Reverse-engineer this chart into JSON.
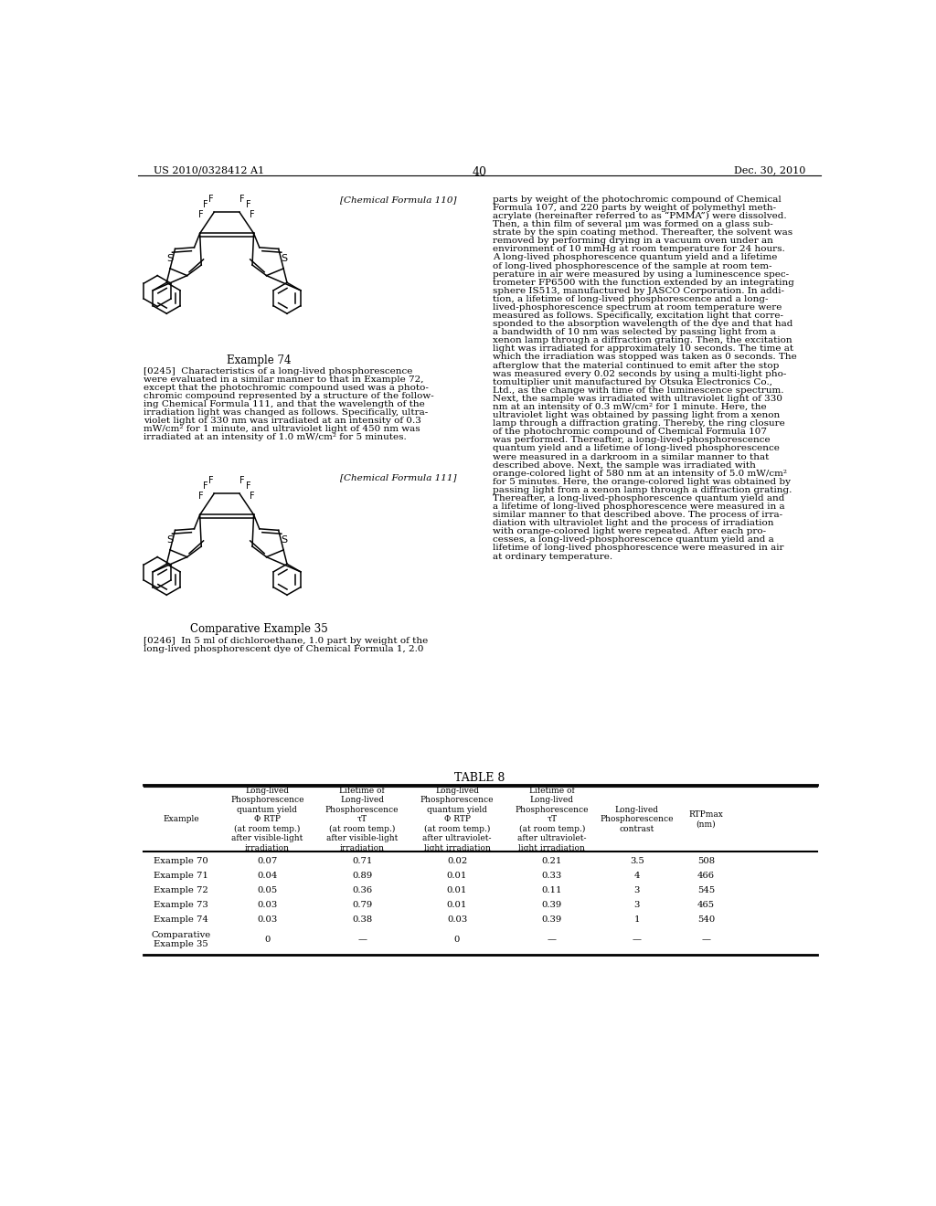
{
  "page_header_left": "US 2010/0328412 A1",
  "page_header_right": "Dec. 30, 2010",
  "page_number": "40",
  "chem_formula_110_label": "[Chemical Formula 110]",
  "chem_formula_111_label": "[Chemical Formula 111]",
  "example74_title": "Example 74",
  "comp_example35_title": "Comparative Example 35",
  "para_0245_lines": [
    "[0245]  Characteristics of a long-lived phosphorescence",
    "were evaluated in a similar manner to that in Example 72,",
    "except that the photochromic compound used was a photo-",
    "chromic compound represented by a structure of the follow-",
    "ing Chemical Formula 111, and that the wavelength of the",
    "irradiation light was changed as follows. Specifically, ultra-",
    "violet light of 330 nm was irradiated at an intensity of 0.3",
    "mW/cm² for 1 minute, and ultraviolet light of 450 nm was",
    "irradiated at an intensity of 1.0 mW/cm² for 5 minutes."
  ],
  "para_0246_lines": [
    "[0246]  In 5 ml of dichloroethane, 1.0 part by weight of the",
    "long-lived phosphorescent dye of Chemical Formula 1, 2.0"
  ],
  "right_col_lines": [
    "parts by weight of the photochromic compound of Chemical",
    "Formula 107, and 220 parts by weight of polymethyl meth-",
    "acrylate (hereinafter referred to as “PMMA”) were dissolved.",
    "Then, a thin film of several μm was formed on a glass sub-",
    "strate by the spin coating method. Thereafter, the solvent was",
    "removed by performing drying in a vacuum oven under an",
    "environment of 10 mmHg at room temperature for 24 hours.",
    "A long-lived phosphorescence quantum yield and a lifetime",
    "of long-lived phosphorescence of the sample at room tem-",
    "perature in air were measured by using a luminescence spec-",
    "trometer FP6500 with the function extended by an integrating",
    "sphere IS513, manufactured by JASCO Corporation. In addi-",
    "tion, a lifetime of long-lived phosphorescence and a long-",
    "lived-phosphorescence spectrum at room temperature were",
    "measured as follows. Specifically, excitation light that corre-",
    "sponded to the absorption wavelength of the dye and that had",
    "a bandwidth of 10 nm was selected by passing light from a",
    "xenon lamp through a diffraction grating. Then, the excitation",
    "light was irradiated for approximately 10 seconds. The time at",
    "which the irradiation was stopped was taken as 0 seconds. The",
    "afterglow that the material continued to emit after the stop",
    "was measured every 0.02 seconds by using a multi-light pho-",
    "tomultiplier unit manufactured by Otsuka Electronics Co.,",
    "Ltd., as the change with time of the luminescence spectrum.",
    "Next, the sample was irradiated with ultraviolet light of 330",
    "nm at an intensity of 0.3 mW/cm² for 1 minute. Here, the",
    "ultraviolet light was obtained by passing light from a xenon",
    "lamp through a diffraction grating. Thereby, the ring closure",
    "of the photochromic compound of Chemical Formula 107",
    "was performed. Thereafter, a long-lived-phosphorescence",
    "quantum yield and a lifetime of long-lived phosphorescence",
    "were measured in a darkroom in a similar manner to that",
    "described above. Next, the sample was irradiated with",
    "orange-colored light of 580 nm at an intensity of 5.0 mW/cm²",
    "for 5 minutes. Here, the orange-colored light was obtained by",
    "passing light from a xenon lamp through a diffraction grating.",
    "Thereafter, a long-lived-phosphorescence quantum yield and",
    "a lifetime of long-lived phosphorescence were measured in a",
    "similar manner to that described above. The process of irra-",
    "diation with ultraviolet light and the process of irradiation",
    "with orange-colored light were repeated. After each pro-",
    "cesses, a long-lived-phosphorescence quantum yield and a",
    "lifetime of long-lived phosphorescence were measured in air",
    "at ordinary temperature."
  ],
  "table_title": "TABLE 8",
  "col_headers": [
    "Example",
    "Long-lived\nPhosphorescence\nquantum yield\nΦ RTP\n(at room temp.)\nafter visible-light\nirradiation",
    "Lifetime of\nLong-lived\nPhosphorescence\nτT\n(at room temp.)\nafter visible-light\nirradiation",
    "Long-lived\nPhosphorescence\nquantum yield\nΦ RTP\n(at room temp.)\nafter ultraviolet-\nlight irradiation",
    "Lifetime of\nLong-lived\nPhosphorescence\nτT\n(at room temp.)\nafter ultraviolet-\nlight irradiation",
    "Long-lived\nPhosphorescence\ncontrast",
    "RTPmax\n(nm)"
  ],
  "rows": [
    [
      "Example 70",
      "0.07",
      "0.71",
      "0.02",
      "0.21",
      "3.5",
      "508"
    ],
    [
      "Example 71",
      "0.04",
      "0.89",
      "0.01",
      "0.33",
      "4",
      "466"
    ],
    [
      "Example 72",
      "0.05",
      "0.36",
      "0.01",
      "0.11",
      "3",
      "545"
    ],
    [
      "Example 73",
      "0.03",
      "0.79",
      "0.01",
      "0.39",
      "3",
      "465"
    ],
    [
      "Example 74",
      "0.03",
      "0.38",
      "0.03",
      "0.39",
      "1",
      "540"
    ],
    [
      "Comparative\nExample 35",
      "0",
      "—",
      "0",
      "—",
      "—",
      "—"
    ]
  ],
  "bg_color": "#ffffff"
}
